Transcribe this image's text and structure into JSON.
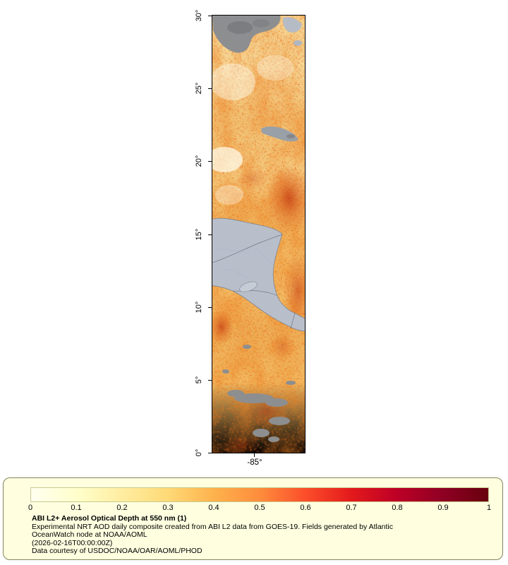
{
  "map": {
    "lat_ticks": [
      "30°",
      "25°",
      "20°",
      "15°",
      "10°",
      "5°",
      "0°"
    ],
    "lon_ticks": [
      "-85°"
    ]
  },
  "legend": {
    "colorbar_ticks": [
      "0",
      "0.1",
      "0.2",
      "0.3",
      "0.4",
      "0.5",
      "0.6",
      "0.7",
      "0.8",
      "0.9",
      "1"
    ],
    "title": "ABI L2+ Aerosol Optical Depth at 550 nm (1)",
    "desc_line1": "Experimental NRT AOD daily composite created from ABI L2 data from GOES-19. Fields generated by Atlantic",
    "desc_line2": "OceanWatch node at NOAA/AOML",
    "desc_line3": "(2026-02-16T00:00:00Z)",
    "credit": "Data courtesy of USDOC/NOAA/OAR/AOML/PHOD"
  },
  "colors": {
    "legend_background": "#ffffe0",
    "legend_border": "#84845a",
    "no_data_gray": "#8d8e90",
    "land_gray": "#b9bfca",
    "colorbar": [
      "#fffff0",
      "#ffffcc",
      "#ffeda0",
      "#fed976",
      "#feb24c",
      "#fd8d3c",
      "#fc4e2a",
      "#e31a1c",
      "#bd0026",
      "#8f0023",
      "#67000d"
    ]
  },
  "chart_data": {
    "type": "heatmap",
    "title": "ABI L2+ Aerosol Optical Depth at 550 nm (1)",
    "colorbar": {
      "range": [
        0,
        1
      ],
      "ticks": [
        0,
        0.1,
        0.2,
        0.3,
        0.4,
        0.5,
        0.6,
        0.7,
        0.8,
        0.9,
        1
      ],
      "colormap": [
        "#fffff0",
        "#ffffcc",
        "#ffeda0",
        "#fed976",
        "#feb24c",
        "#fd8d3c",
        "#fc4e2a",
        "#e31a1c",
        "#bd0026",
        "#8f0023",
        "#67000d"
      ]
    },
    "y_axis": {
      "tick_labels": [
        "30°",
        "25°",
        "20°",
        "15°",
        "10°",
        "5°",
        "0°"
      ]
    },
    "x_axis": {
      "tick_labels": [
        "-85°"
      ]
    },
    "annotations": [
      "Experimental NRT AOD daily composite created from ABI L2 data from GOES-19. Fields generated by Atlantic OceanWatch node at NOAA/AOML",
      "(2026-02-16T00:00:00Z)",
      "Data courtesy of USDOC/NOAA/OAR/AOML/PHOD"
    ]
  }
}
